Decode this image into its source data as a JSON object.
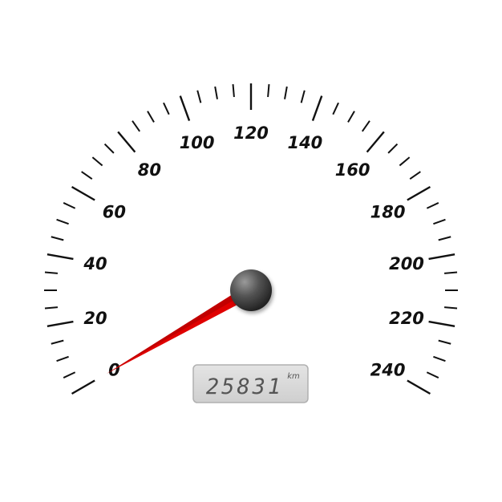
{
  "speedometer": {
    "scale_min": 0,
    "scale_max": 240,
    "major_step": 20,
    "minor_step": 5,
    "labels": [
      "0",
      "20",
      "40",
      "60",
      "80",
      "100",
      "120",
      "140",
      "160",
      "180",
      "200",
      "220",
      "240"
    ],
    "current_speed": 0,
    "odometer": {
      "value": "25831",
      "unit": "km"
    },
    "colors": {
      "needle": "#e00000",
      "needle_dark": "#a80000",
      "hub": "#333333",
      "ticks": "#111111",
      "display_background": "#d6d6d6",
      "display_border": "#b0b0b0"
    },
    "icons": {
      "needle": "needle-icon",
      "hub": "needle-hub-icon"
    }
  }
}
